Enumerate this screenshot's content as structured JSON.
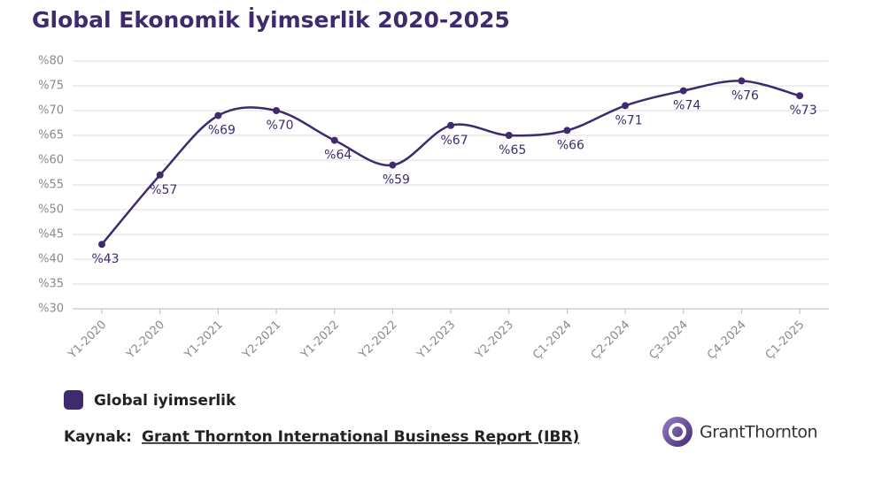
{
  "chart_data": {
    "type": "line",
    "title": "Global Ekonomik İyimserlik 2020-2025",
    "categories": [
      "Y1-2020",
      "Y2-2020",
      "Y1-2021",
      "Y2-2021",
      "Y1-2022",
      "Y2-2022",
      "Y1-2023",
      "Y2-2023",
      "Ç1-2024",
      "Ç2-2024",
      "Ç3-2024",
      "Ç4-2024",
      "Ç1-2025"
    ],
    "series": [
      {
        "name": "Global iyimserlik",
        "color": "#3f2a6e",
        "values": [
          43,
          57,
          69,
          70,
          64,
          59,
          67,
          65,
          66,
          71,
          74,
          76,
          73
        ],
        "value_labels": [
          "%43",
          "%57",
          "%69",
          "%70",
          "%64",
          "%59",
          "%67",
          "%65",
          "%66",
          "%71",
          "%74",
          "%76",
          "%73"
        ]
      }
    ],
    "ylim": [
      30,
      80
    ],
    "yticks": [
      {
        "value": 30,
        "label": "%30"
      },
      {
        "value": 35,
        "label": "%35"
      },
      {
        "value": 40,
        "label": "%40"
      },
      {
        "value": 45,
        "label": "%45"
      },
      {
        "value": 50,
        "label": "%50"
      },
      {
        "value": 55,
        "label": "%55"
      },
      {
        "value": 60,
        "label": "%60"
      },
      {
        "value": 65,
        "label": "%65"
      },
      {
        "value": 70,
        "label": "%70"
      },
      {
        "value": 75,
        "label": "%75"
      },
      {
        "value": 80,
        "label": "%80"
      }
    ],
    "grid": true,
    "source_label": "Kaynak:",
    "source": "Grant Thornton International Business Report (IBR)",
    "logo": "GrantThornton"
  }
}
